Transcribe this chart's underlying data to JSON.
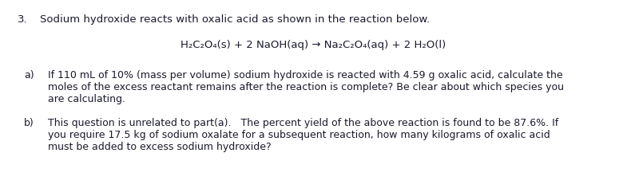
{
  "background_color": "#ffffff",
  "text_color": "#1a1a2e",
  "figsize": [
    7.85,
    2.46
  ],
  "dpi": 100,
  "question_number": "3.",
  "question_text": "Sodium hydroxide reacts with oxalic acid as shown in the reaction below.",
  "equation": "H₂C₂O₄(s) + 2 NaOH(aq) → Na₂C₂O₄(aq) + 2 H₂O(l)",
  "part_a_label": "a)",
  "part_a_line1": "If 110 mL of 10% (mass per volume) sodium hydroxide is reacted with 4.59 g oxalic acid, calculate the",
  "part_a_line2": "moles of the excess reactant remains after the reaction is complete? Be clear about which species you",
  "part_a_line3": "are calculating.",
  "part_b_label": "b)",
  "part_b_line1": "This question is unrelated to part(a).   The percent yield of the above reaction is found to be 87.6%. If",
  "part_b_line2": "you require 17.5 kg of sodium oxalate for a subsequent reaction, how many kilograms of oxalic acid",
  "part_b_line3": "must be added to excess sodium hydroxide?",
  "fs_title": 9.5,
  "fs_eq": 9.5,
  "fs_body": 9.0
}
